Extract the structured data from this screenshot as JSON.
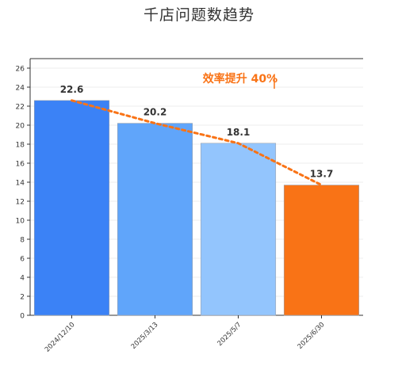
{
  "chart_data": {
    "type": "bar",
    "title": "千店问题数趋势",
    "xlabel": "",
    "ylabel": "",
    "categories": [
      "2024/12/10",
      "2025/3/13",
      "2025/5/7",
      "2025/6/30"
    ],
    "values": [
      22.6,
      20.2,
      18.1,
      13.7
    ],
    "data_labels": [
      "22.6",
      "20.2",
      "18.1",
      "13.7"
    ],
    "ylim": [
      0,
      27
    ],
    "yticks": [
      0,
      2,
      4,
      6,
      8,
      10,
      12,
      14,
      16,
      18,
      20,
      22,
      24,
      26
    ],
    "grid": true,
    "bar_colors": [
      "#3b82f6",
      "#60a5fa",
      "#93c5fd",
      "#f97316"
    ],
    "trendline": {
      "style": "dashed",
      "color": "#f97316",
      "values": [
        22.6,
        20.2,
        18.1,
        13.7
      ]
    },
    "annotation": {
      "text": "效率提升 40%",
      "color": "#f97316"
    }
  }
}
